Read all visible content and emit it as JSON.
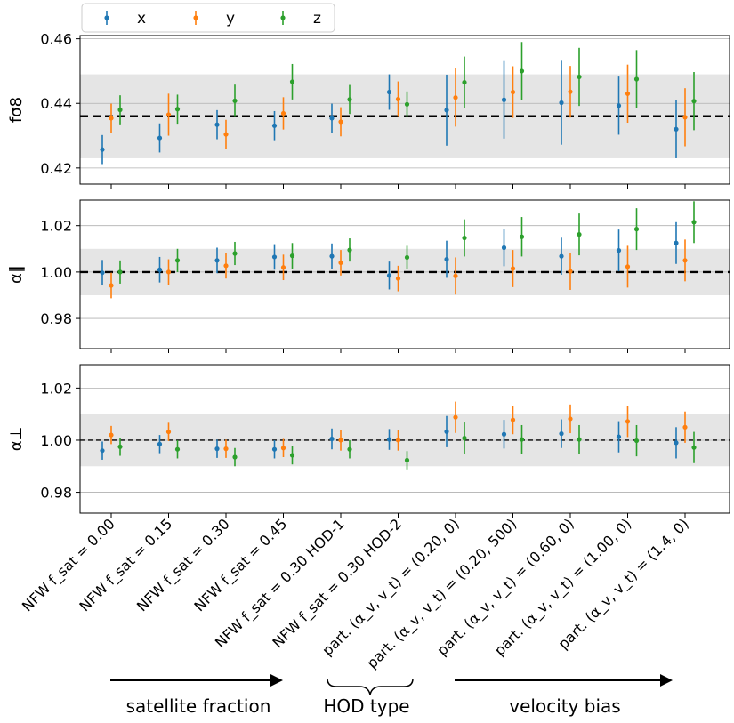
{
  "chart_data": {
    "type": "errorbar",
    "categories": [
      "NFW f_sat = 0.00",
      "NFW f_sat = 0.15",
      "NFW f_sat = 0.30",
      "NFW f_sat = 0.45",
      "NFW f_sat = 0.30 HOD-1",
      "NFW f_sat = 0.30 HOD-2",
      "part. (α_v, v_t) = (0.20, 0)",
      "part. (α_v, v_t) = (0.20, 500)",
      "part. (α_v, v_t) = (0.60, 0)",
      "part. (α_v, v_t) = (1.00, 0)",
      "part. (α_v, v_t) = (1.4, 0)"
    ],
    "legend": [
      {
        "name": "x",
        "color": "#1f77b4"
      },
      {
        "name": "y",
        "color": "#ff7f0e"
      },
      {
        "name": "z",
        "color": "#2ca02c"
      }
    ],
    "panels": [
      {
        "id": "fsigma8",
        "ylabel": "fσ8",
        "ylim": [
          0.415,
          0.461
        ],
        "yticks": [
          0.42,
          0.44,
          0.46
        ],
        "yticklabels": [
          "0.42",
          "0.44",
          "0.46"
        ],
        "reference": 0.436,
        "band": [
          0.423,
          0.449
        ],
        "series": [
          {
            "name": "x",
            "values": [
              0.4257,
              0.4293,
              0.4334,
              0.4331,
              0.4354,
              0.4435,
              0.4379,
              0.4411,
              0.4402,
              0.4393,
              0.432
            ],
            "errors": [
              0.0045,
              0.0045,
              0.0045,
              0.0045,
              0.0045,
              0.0055,
              0.011,
              0.012,
              0.013,
              0.009,
              0.009
            ]
          },
          {
            "name": "y",
            "values": [
              0.4354,
              0.4365,
              0.4304,
              0.4369,
              0.4343,
              0.4413,
              0.4418,
              0.4435,
              0.4436,
              0.443,
              0.4357
            ],
            "errors": [
              0.0045,
              0.0065,
              0.0045,
              0.005,
              0.0045,
              0.0055,
              0.009,
              0.008,
              0.008,
              0.009,
              0.009
            ]
          },
          {
            "name": "z",
            "values": [
              0.438,
              0.4382,
              0.4408,
              0.4467,
              0.4412,
              0.4397,
              0.4465,
              0.45,
              0.4482,
              0.4475,
              0.4407
            ],
            "errors": [
              0.0045,
              0.0045,
              0.005,
              0.0055,
              0.0045,
              0.004,
              0.008,
              0.009,
              0.009,
              0.009,
              0.009
            ]
          }
        ]
      },
      {
        "id": "alpha-par",
        "ylabel": "α∥",
        "ylim": [
          0.967,
          1.031
        ],
        "yticks": [
          0.98,
          1.0,
          1.02
        ],
        "yticklabels": [
          "0.98",
          "1.00",
          "1.02"
        ],
        "reference": 1.0,
        "band": [
          0.99,
          1.01
        ],
        "series": [
          {
            "name": "x",
            "values": [
              0.9997,
              1.001,
              1.005,
              1.0065,
              1.0068,
              0.9985,
              1.0055,
              1.0105,
              1.0068,
              1.0093,
              1.0125
            ],
            "errors": [
              0.0055,
              0.0055,
              0.0055,
              0.0055,
              0.0055,
              0.006,
              0.008,
              0.008,
              0.008,
              0.009,
              0.009
            ]
          },
          {
            "name": "y",
            "values": [
              0.9942,
              1.0,
              1.0027,
              1.002,
              1.004,
              0.9972,
              0.9983,
              1.0015,
              1.0003,
              1.0023,
              1.005
            ],
            "errors": [
              0.0055,
              0.0055,
              0.0055,
              0.0055,
              0.0055,
              0.0055,
              0.008,
              0.008,
              0.008,
              0.009,
              0.009
            ]
          },
          {
            "name": "z",
            "values": [
              1.0,
              1.005,
              1.008,
              1.007,
              1.0095,
              1.0063,
              1.0147,
              1.0152,
              1.0162,
              1.0185,
              1.0215
            ],
            "errors": [
              0.005,
              0.005,
              0.005,
              0.0055,
              0.005,
              0.005,
              0.008,
              0.0085,
              0.009,
              0.009,
              0.009
            ]
          }
        ]
      },
      {
        "id": "alpha-perp",
        "ylabel": "α⊥",
        "ylim": [
          0.972,
          1.029
        ],
        "yticks": [
          0.98,
          1.0,
          1.02
        ],
        "yticklabels": [
          "0.98",
          "1.00",
          "1.02"
        ],
        "reference": 1.0,
        "band": [
          0.99,
          1.01
        ],
        "series": [
          {
            "name": "x",
            "values": [
              0.996,
              0.9985,
              0.9967,
              0.9965,
              1.0005,
              1.0003,
              1.0033,
              1.0023,
              1.0025,
              1.0013,
              0.999
            ],
            "errors": [
              0.0035,
              0.0035,
              0.0035,
              0.0035,
              0.004,
              0.004,
              0.006,
              0.0055,
              0.0055,
              0.006,
              0.006
            ]
          },
          {
            "name": "y",
            "values": [
              1.002,
              1.0032,
              0.9967,
              0.997,
              1.0,
              1.0,
              1.0088,
              1.0078,
              1.0082,
              1.0072,
              1.005
            ],
            "errors": [
              0.0035,
              0.0035,
              0.0035,
              0.0035,
              0.004,
              0.004,
              0.006,
              0.0055,
              0.0055,
              0.006,
              0.006
            ]
          },
          {
            "name": "z",
            "values": [
              0.9975,
              0.9965,
              0.9935,
              0.9942,
              0.9965,
              0.9923,
              1.0008,
              1.0003,
              1.0003,
              0.9998,
              0.9972
            ],
            "errors": [
              0.0035,
              0.0035,
              0.0035,
              0.0035,
              0.0035,
              0.0035,
              0.006,
              0.0055,
              0.0055,
              0.006,
              0.006
            ]
          }
        ]
      }
    ],
    "group_annotations": [
      {
        "label": "satellite fraction",
        "style": "arrow"
      },
      {
        "label": "HOD type",
        "style": "brace"
      },
      {
        "label": "velocity bias",
        "style": "arrow"
      }
    ]
  }
}
